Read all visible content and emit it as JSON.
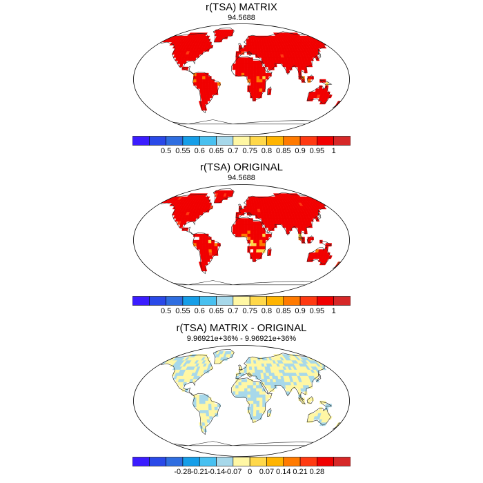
{
  "panels": [
    {
      "title": "r(TSA) MATRIX",
      "subtitle": "94.5688",
      "field": "full",
      "colorbar": {
        "colors": [
          "#3b1cff",
          "#2a49e8",
          "#2f6ee0",
          "#169ee8",
          "#48c0f0",
          "#a7d8ea",
          "#fff7a4",
          "#ffd84a",
          "#ffb400",
          "#ff7a00",
          "#ff3a12",
          "#f10000",
          "#d62828"
        ],
        "ticks": [
          "0.5",
          "0.55",
          "0.6",
          "0.65",
          "0.7",
          "0.75",
          "0.8",
          "0.85",
          "0.9",
          "0.95",
          "1"
        ]
      }
    },
    {
      "title": "r(TSA) ORIGINAL",
      "subtitle": "94.5688",
      "field": "full",
      "colorbar": {
        "colors": [
          "#3b1cff",
          "#2a49e8",
          "#2f6ee0",
          "#169ee8",
          "#48c0f0",
          "#a7d8ea",
          "#fff7a4",
          "#ffd84a",
          "#ffb400",
          "#ff7a00",
          "#ff3a12",
          "#f10000",
          "#d62828"
        ],
        "ticks": [
          "0.5",
          "0.55",
          "0.6",
          "0.65",
          "0.7",
          "0.75",
          "0.8",
          "0.85",
          "0.9",
          "0.95",
          "1"
        ]
      }
    },
    {
      "title": "r(TSA) MATRIX - ORIGINAL",
      "subtitle": "9.96921e+36% - 9.96921e+36%",
      "field": "diff",
      "colorbar": {
        "colors": [
          "#3b1cff",
          "#2a49e8",
          "#2f6ee0",
          "#169ee8",
          "#48c0f0",
          "#a7d8ea",
          "#fff7a4",
          "#ffd84a",
          "#ffb400",
          "#ff7a00",
          "#ff3a12",
          "#f10000",
          "#d62828"
        ],
        "ticks": [
          "-0.28",
          "-0.21",
          "-0.14",
          "-0.07",
          "0",
          "0.07",
          "0.14",
          "0.21",
          "0.28"
        ]
      }
    }
  ]
}
